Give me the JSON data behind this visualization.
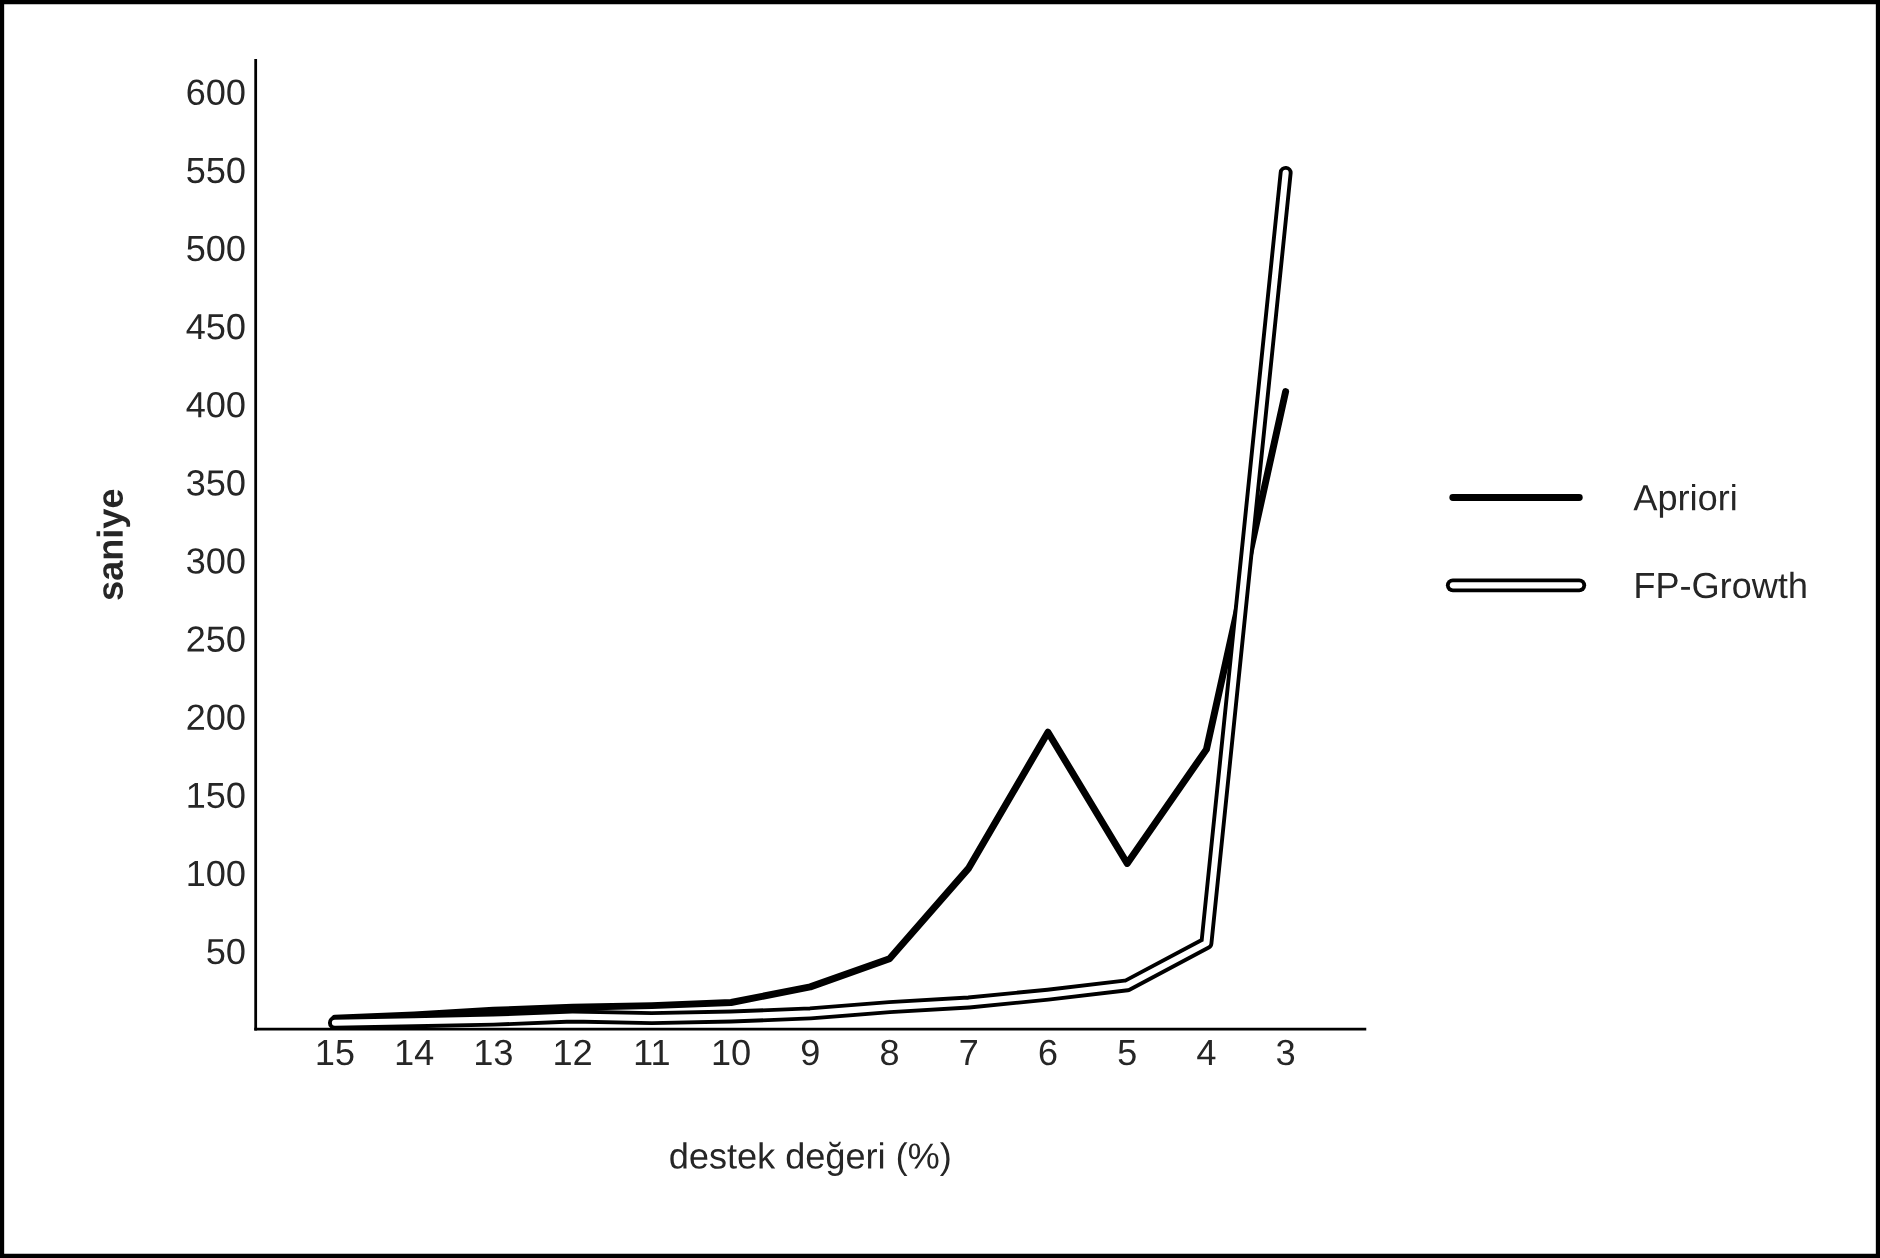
{
  "chart_data": {
    "type": "line",
    "xlabel": "destek değeri (%)",
    "ylabel": "saniye",
    "categories": [
      "15",
      "14",
      "13",
      "12",
      "11",
      "10",
      "9",
      "8",
      "7",
      "6",
      "5",
      "4",
      "3"
    ],
    "series": [
      {
        "name": "Apriori",
        "color": "#000000",
        "values": [
          7,
          9,
          12,
          14,
          15,
          17,
          27,
          45,
          103,
          190,
          106,
          179,
          408
        ]
      },
      {
        "name": "FP-Growth",
        "color": "#000000",
        "values": [
          4,
          5,
          6,
          8,
          7,
          8,
          10,
          14,
          17,
          22,
          28,
          55,
          548
        ]
      }
    ],
    "ylim": [
      0,
      620
    ],
    "yticks": [
      50,
      100,
      150,
      200,
      250,
      300,
      350,
      400,
      450,
      500,
      550,
      600
    ],
    "grid": false,
    "legend": "right",
    "marker": "none",
    "line_style": "solid"
  }
}
